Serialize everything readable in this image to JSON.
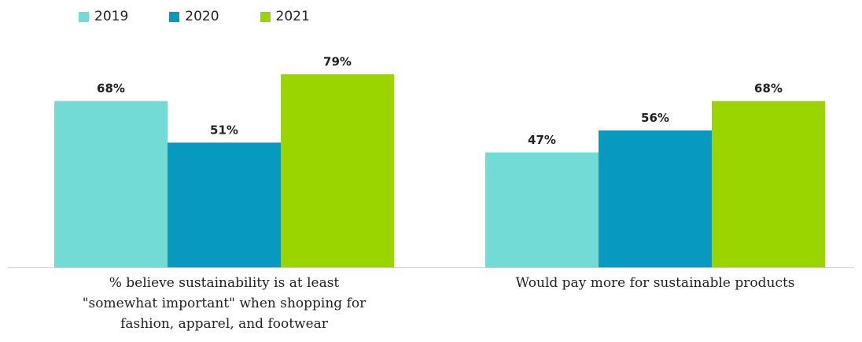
{
  "chart_data": {
    "type": "bar",
    "categories": [
      "% believe sustainability is at least \"somewhat important\" when shopping for fashion, apparel, and footwear",
      "Would pay more for sustainable products"
    ],
    "category_lines": [
      [
        "% believe sustainability is at least",
        "\"somewhat important\" when shopping for",
        "fashion, apparel, and footwear"
      ],
      [
        "Would pay more for sustainable products"
      ]
    ],
    "series": [
      {
        "name": "2019",
        "values": [
          68,
          47
        ],
        "color": "#72dbd6"
      },
      {
        "name": "2020",
        "values": [
          51,
          56
        ],
        "color": "#0899c0"
      },
      {
        "name": "2021",
        "values": [
          79,
          68
        ],
        "color": "#9bd500"
      }
    ],
    "data_labels": [
      [
        "68%",
        "47%"
      ],
      [
        "51%",
        "56%"
      ],
      [
        "79%",
        "68%"
      ]
    ],
    "value_unit": "%",
    "ylim": [
      0,
      100
    ],
    "legend_position": "top-left",
    "grid": false
  }
}
